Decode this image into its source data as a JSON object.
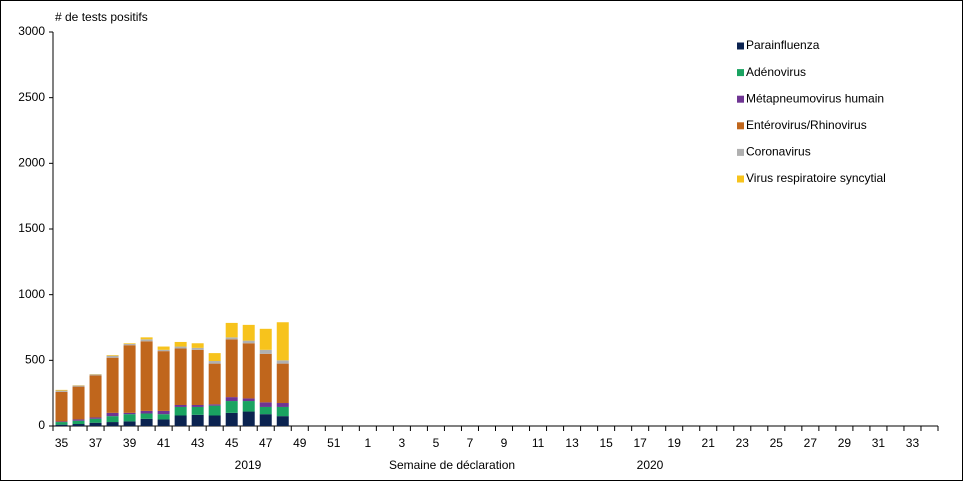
{
  "chart_data": {
    "type": "stacked_bar",
    "y_axis_label": "# de tests positifs",
    "x_axis_label": "Semaine de déclaration",
    "annotations": [
      "2019",
      "2020"
    ],
    "categories": [
      35,
      null,
      37,
      null,
      39,
      null,
      41,
      null,
      43,
      null,
      45,
      null,
      47,
      null,
      49,
      null,
      51,
      null,
      1,
      null,
      3,
      null,
      5,
      null,
      7,
      null,
      9,
      null,
      11,
      null,
      13,
      null,
      15,
      null,
      17,
      null,
      19,
      null,
      21,
      null,
      23,
      null,
      25,
      null,
      27,
      null,
      29,
      null,
      31,
      null,
      33,
      null
    ],
    "ylim": [
      0,
      3000
    ],
    "yticks": [
      0,
      500,
      1000,
      1500,
      2000,
      2500,
      3000
    ],
    "legend_position": "upper right",
    "series": [
      {
        "name": "Parainfluenza",
        "color": "#0b2350",
        "values": [
          10,
          15,
          25,
          30,
          35,
          55,
          50,
          80,
          85,
          80,
          100,
          110,
          90,
          75,
          null,
          null,
          null,
          null,
          null,
          null,
          null,
          null,
          null,
          null,
          null,
          null,
          null,
          null,
          null,
          null,
          null,
          null,
          null,
          null,
          null,
          null,
          null,
          null,
          null,
          null,
          null,
          null,
          null,
          null,
          null,
          null,
          null,
          null,
          null,
          null,
          null,
          null
        ]
      },
      {
        "name": "Adénovirus",
        "color": "#1aa361",
        "values": [
          20,
          25,
          30,
          45,
          55,
          40,
          40,
          65,
          60,
          75,
          90,
          80,
          55,
          70,
          null,
          null,
          null,
          null,
          null,
          null,
          null,
          null,
          null,
          null,
          null,
          null,
          null,
          null,
          null,
          null,
          null,
          null,
          null,
          null,
          null,
          null,
          null,
          null,
          null,
          null,
          null,
          null,
          null,
          null,
          null,
          null,
          null,
          null,
          null,
          null,
          null,
          null
        ]
      },
      {
        "name": "Métapneumovirus humain",
        "color": "#6f3593",
        "values": [
          5,
          10,
          10,
          25,
          10,
          20,
          25,
          15,
          15,
          10,
          30,
          20,
          35,
          30,
          null,
          null,
          null,
          null,
          null,
          null,
          null,
          null,
          null,
          null,
          null,
          null,
          null,
          null,
          null,
          null,
          null,
          null,
          null,
          null,
          null,
          null,
          null,
          null,
          null,
          null,
          null,
          null,
          null,
          null,
          null,
          null,
          null,
          null,
          null,
          null,
          null,
          null
        ]
      },
      {
        "name": "Entérovirus/Rhinovirus",
        "color": "#c0661c",
        "values": [
          225,
          250,
          320,
          420,
          515,
          530,
          455,
          430,
          420,
          310,
          440,
          420,
          370,
          300,
          null,
          null,
          null,
          null,
          null,
          null,
          null,
          null,
          null,
          null,
          null,
          null,
          null,
          null,
          null,
          null,
          null,
          null,
          null,
          null,
          null,
          null,
          null,
          null,
          null,
          null,
          null,
          null,
          null,
          null,
          null,
          null,
          null,
          null,
          null,
          null,
          null,
          null
        ]
      },
      {
        "name": "Coronavirus",
        "color": "#b0b0b0",
        "values": [
          10,
          8,
          8,
          15,
          10,
          15,
          10,
          15,
          15,
          20,
          15,
          20,
          30,
          25,
          null,
          null,
          null,
          null,
          null,
          null,
          null,
          null,
          null,
          null,
          null,
          null,
          null,
          null,
          null,
          null,
          null,
          null,
          null,
          null,
          null,
          null,
          null,
          null,
          null,
          null,
          null,
          null,
          null,
          null,
          null,
          null,
          null,
          null,
          null,
          null,
          null,
          null
        ]
      },
      {
        "name": "Virus respiratoire syncytial",
        "color": "#f7c31c",
        "values": [
          5,
          2,
          2,
          5,
          5,
          15,
          25,
          35,
          35,
          60,
          110,
          120,
          160,
          290,
          null,
          null,
          null,
          null,
          null,
          null,
          null,
          null,
          null,
          null,
          null,
          null,
          null,
          null,
          null,
          null,
          null,
          null,
          null,
          null,
          null,
          null,
          null,
          null,
          null,
          null,
          null,
          null,
          null,
          null,
          null,
          null,
          null,
          null,
          null,
          null,
          null,
          null
        ]
      }
    ]
  }
}
